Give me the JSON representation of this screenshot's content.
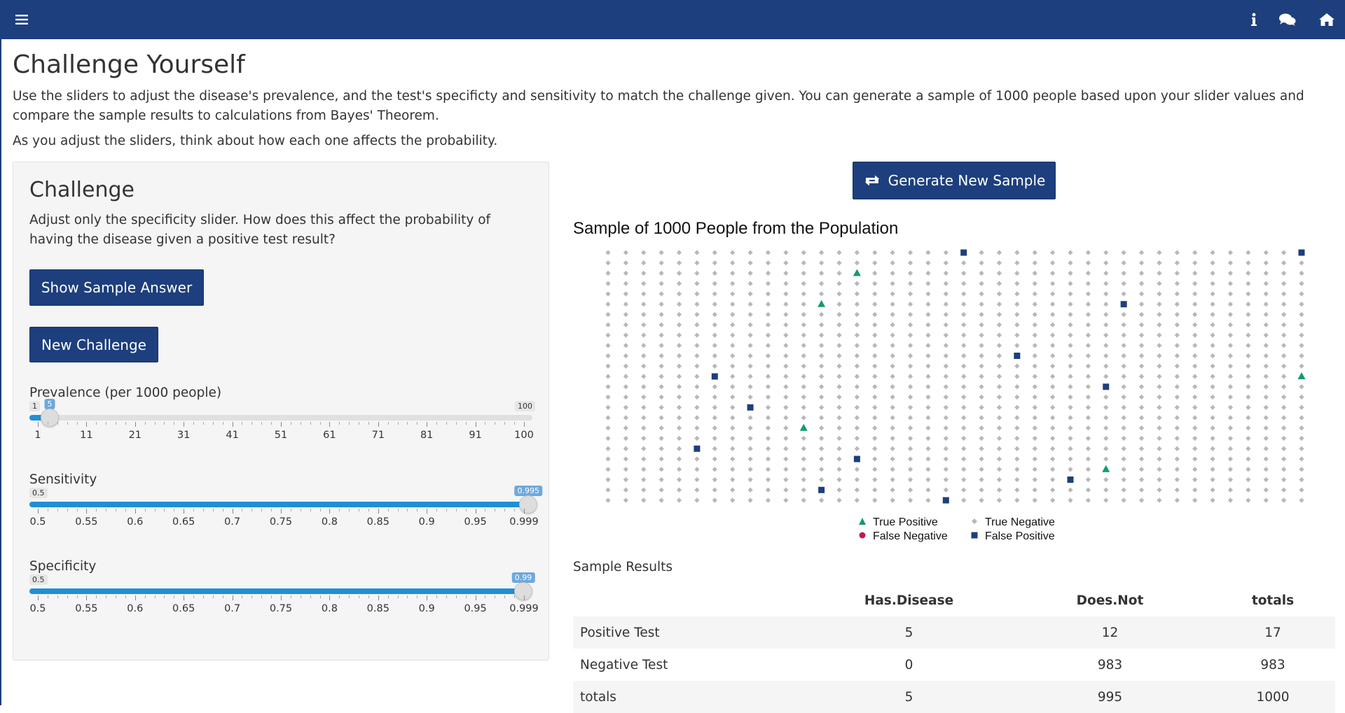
{
  "navbar": {
    "menu_icon": "hamburger-menu-icon",
    "info_icon": "info-icon",
    "chat_icon": "comments-icon",
    "home_icon": "home-icon",
    "color": "#1d3f7d"
  },
  "page": {
    "title": "Challenge Yourself",
    "intro": "Use the sliders to adjust the disease's prevalence, and the test's specificty and sensitivity to match the challenge given. You can generate a sample of 1000 people based upon your slider values and compare the sample results to calculations from Bayes' Theorem.",
    "intro2": "As you adjust the sliders, think about how each one affects the probability."
  },
  "challenge": {
    "heading": "Challenge",
    "text": "Adjust only the specificity slider. How does this affect the probability of having the disease given a positive test result?",
    "show_answer_label": "Show Sample Answer",
    "new_challenge_label": "New Challenge"
  },
  "sliders": {
    "prevalence": {
      "label": "Prevalence (per 1000 people)",
      "min": 1,
      "max": 100,
      "value": 5,
      "min_label": "1",
      "max_label": "100",
      "value_label": "5",
      "ticks": [
        "1",
        "11",
        "21",
        "31",
        "41",
        "51",
        "61",
        "71",
        "81",
        "91",
        "100"
      ]
    },
    "sensitivity": {
      "label": "Sensitivity",
      "min": 0.5,
      "max": 0.999,
      "value": 0.995,
      "min_label": "0.5",
      "value_label": "0.995",
      "ticks": [
        "0.5",
        "0.55",
        "0.6",
        "0.65",
        "0.7",
        "0.75",
        "0.8",
        "0.85",
        "0.9",
        "0.95",
        "0.999"
      ]
    },
    "specificity": {
      "label": "Specificity",
      "min": 0.5,
      "max": 0.999,
      "value": 0.99,
      "min_label": "0.5",
      "value_label": "0.99",
      "ticks": [
        "0.5",
        "0.55",
        "0.6",
        "0.65",
        "0.7",
        "0.75",
        "0.8",
        "0.85",
        "0.9",
        "0.95",
        "0.999"
      ]
    },
    "fill_color": "#1f8fd6"
  },
  "sample": {
    "generate_label": "Generate New Sample",
    "generate_icon": "refresh-icon"
  },
  "chart_data": {
    "type": "scatter",
    "title": "Sample of 1000 People from the Population",
    "grid": {
      "columns": 40,
      "rows": 25
    },
    "categories": [
      "True Positive",
      "True Negative",
      "False Negative",
      "False Positive"
    ],
    "colors": {
      "True Positive": "#119a74",
      "True Negative": "#b8b8b8",
      "False Negative": "#c2185b",
      "False Positive": "#1d3f7d"
    },
    "points_true_positive": [
      [
        14,
        2
      ],
      [
        12,
        5
      ],
      [
        39,
        12
      ],
      [
        11,
        17
      ],
      [
        28,
        21
      ]
    ],
    "points_false_positive": [
      [
        20,
        0
      ],
      [
        39,
        0
      ],
      [
        29,
        5
      ],
      [
        23,
        10
      ],
      [
        6,
        12
      ],
      [
        28,
        13
      ],
      [
        8,
        15
      ],
      [
        5,
        19
      ],
      [
        14,
        20
      ],
      [
        26,
        22
      ],
      [
        12,
        23
      ],
      [
        19,
        24
      ]
    ],
    "points_false_negative": [],
    "legend": [
      {
        "label": "True Positive",
        "symbol": "triangle",
        "color": "#119a74"
      },
      {
        "label": "True Negative",
        "symbol": "diamond",
        "color": "#b8b8b8"
      },
      {
        "label": "False Negative",
        "symbol": "circle",
        "color": "#c2185b"
      },
      {
        "label": "False Positive",
        "symbol": "square",
        "color": "#1d3f7d"
      }
    ]
  },
  "results": {
    "title": "Sample Results",
    "columns": [
      "",
      "Has.Disease",
      "Does.Not",
      "totals"
    ],
    "rows": [
      [
        "Positive Test",
        "5",
        "12",
        "17"
      ],
      [
        "Negative Test",
        "0",
        "983",
        "983"
      ],
      [
        "totals",
        "5",
        "995",
        "1000"
      ]
    ]
  }
}
